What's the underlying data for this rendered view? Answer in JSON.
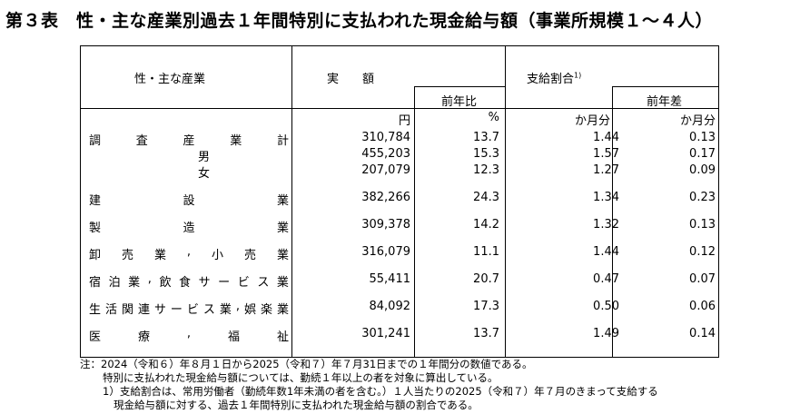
{
  "title": "第３表　性・主な産業別過去１年間特別に支払われた現金給与額（事業所規模１～４人）",
  "header": {
    "industry": "性・主な産業",
    "amount": "実　　額",
    "amount_yoy": "前年比",
    "ratio": "支給割合",
    "ratio_sup": "1)",
    "ratio_diff": "前年差"
  },
  "units": {
    "amount": "円",
    "yoy": "%",
    "ratio": "か月分",
    "diff": "か月分"
  },
  "rows": [
    {
      "label": [
        "調",
        "査",
        "産",
        "業",
        "計"
      ],
      "amount": "310,784",
      "yoy": "13.7",
      "ratio": "1.44",
      "diff": "0.13"
    },
    {
      "label": [
        "男"
      ],
      "amount": "455,203",
      "yoy": "15.3",
      "ratio": "1.57",
      "diff": "0.17"
    },
    {
      "label": [
        "女"
      ],
      "amount": "207,079",
      "yoy": "12.3",
      "ratio": "1.27",
      "diff": "0.09"
    },
    {
      "label": [
        "建",
        "設",
        "業"
      ],
      "amount": "382,266",
      "yoy": "24.3",
      "ratio": "1.34",
      "diff": "0.23"
    },
    {
      "label": [
        "製",
        "造",
        "業"
      ],
      "amount": "309,378",
      "yoy": "14.2",
      "ratio": "1.32",
      "diff": "0.13"
    },
    {
      "label": [
        "卸",
        "売",
        "業",
        ",",
        "小",
        "売",
        "業"
      ],
      "amount": "316,079",
      "yoy": "11.1",
      "ratio": "1.44",
      "diff": "0.12"
    },
    {
      "label": [
        "宿",
        "泊",
        "業",
        ",",
        "飲",
        "食",
        "サ",
        "ー",
        "ビ",
        "ス",
        "業"
      ],
      "amount": "55,411",
      "yoy": "20.7",
      "ratio": "0.47",
      "diff": "0.07"
    },
    {
      "label": [
        "生",
        "活",
        "関",
        "連",
        "サ",
        "ー",
        "ビ",
        "ス",
        "業",
        ",",
        "娯",
        "楽",
        "業"
      ],
      "amount": "84,092",
      "yoy": "17.3",
      "ratio": "0.50",
      "diff": "0.06"
    },
    {
      "label": [
        "医",
        "療",
        ",",
        "福",
        "祉"
      ],
      "amount": "301,241",
      "yoy": "13.7",
      "ratio": "1.49",
      "diff": "0.14"
    }
  ],
  "notes": [
    "注：2024（令和６）年８月１日から2025（令和７）年７月31日までの１年間分の数値である。",
    "特別に支払われた現金給与額については、勤続１年以上の者を対象に算出している。",
    "1）支給割合は、常用労働者（勤続年数1年未満の者を含む。）１人当たりの2025（令和７）年７月のきまって支給する",
    "現金給与額に対する、過去１年間特別に支払われた現金給与額の割合である。"
  ]
}
